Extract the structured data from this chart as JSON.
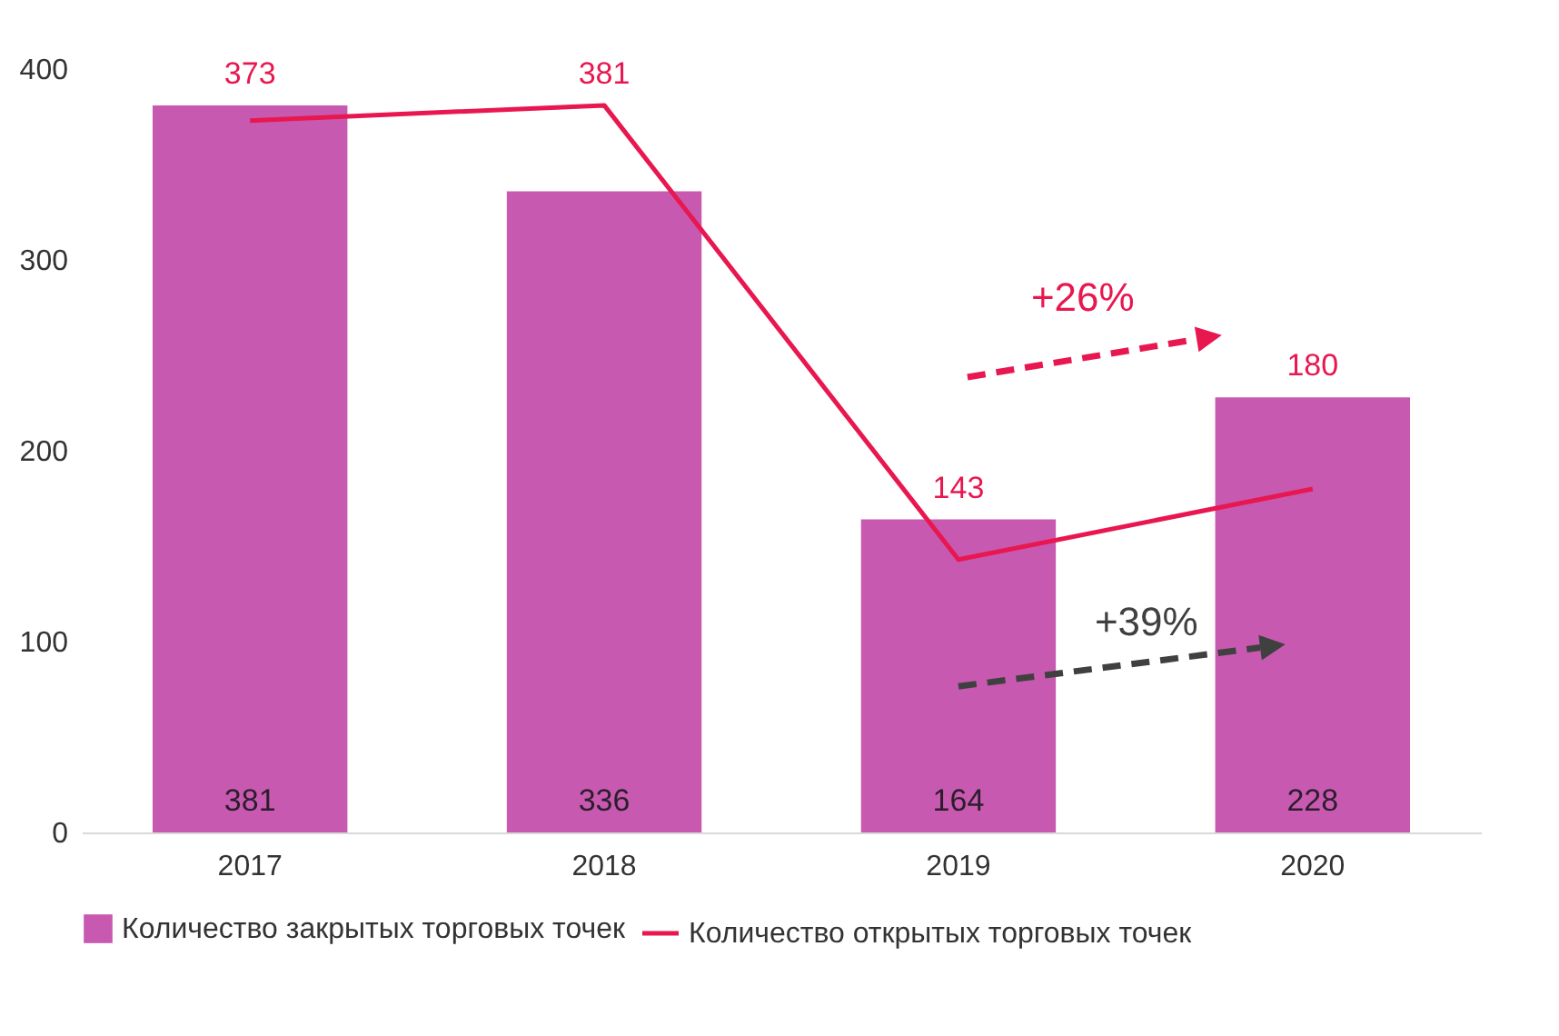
{
  "chart_data": {
    "type": "bar",
    "categories": [
      "2017",
      "2018",
      "2019",
      "2020"
    ],
    "series": [
      {
        "name": "Количество закрытых торговых точек",
        "color": "#c75ab0",
        "values": [
          381,
          336,
          164,
          228
        ],
        "value_labels": [
          "381",
          "336",
          "164",
          "228"
        ]
      },
      {
        "name": "Количество открытых торговых точек",
        "type": "line",
        "color": "#e8174f",
        "values": [
          373,
          381,
          143,
          180
        ],
        "value_labels": [
          "373",
          "381",
          "143",
          null
        ]
      }
    ],
    "ylim": [
      0,
      400
    ],
    "yticks": [
      0,
      100,
      200,
      300,
      400
    ],
    "grid": false,
    "legend": "bottom",
    "annotations": [
      "+26%",
      "+39%",
      "180"
    ]
  }
}
